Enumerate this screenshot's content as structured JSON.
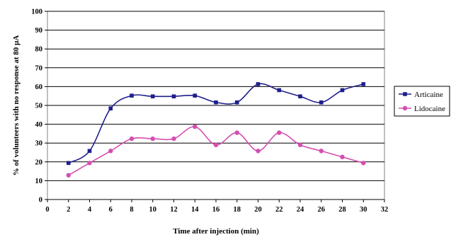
{
  "chart_data": {
    "type": "line",
    "title": "",
    "xlabel": "Time after injection (min)",
    "ylabel": "% of volunteers with no response at 80 µA",
    "xlim": [
      0,
      32
    ],
    "ylim": [
      0,
      100
    ],
    "xticks": [
      0,
      2,
      4,
      6,
      8,
      10,
      12,
      14,
      16,
      18,
      20,
      22,
      24,
      26,
      28,
      30,
      32
    ],
    "yticks": [
      0,
      10,
      20,
      30,
      40,
      50,
      60,
      70,
      80,
      90,
      100
    ],
    "grid": "horizontal",
    "legend_position": "right",
    "x": [
      2,
      4,
      6,
      8,
      10,
      12,
      14,
      16,
      18,
      20,
      22,
      24,
      26,
      28,
      30
    ],
    "series": [
      {
        "name": "Articaine",
        "color": "#1f1f8c",
        "marker": "square",
        "values": [
          19.4,
          25.8,
          48.4,
          55.2,
          54.8,
          54.8,
          55.2,
          51.6,
          51.6,
          61.3,
          58.1,
          54.8,
          51.6,
          58.1,
          61.3
        ]
      },
      {
        "name": "Lidocaine",
        "color": "#d44fb0",
        "marker": "circle",
        "values": [
          12.9,
          19.4,
          25.8,
          32.3,
          32.3,
          32.3,
          38.7,
          29.0,
          35.5,
          25.8,
          35.5,
          29.0,
          25.8,
          22.6,
          19.4
        ]
      }
    ]
  }
}
